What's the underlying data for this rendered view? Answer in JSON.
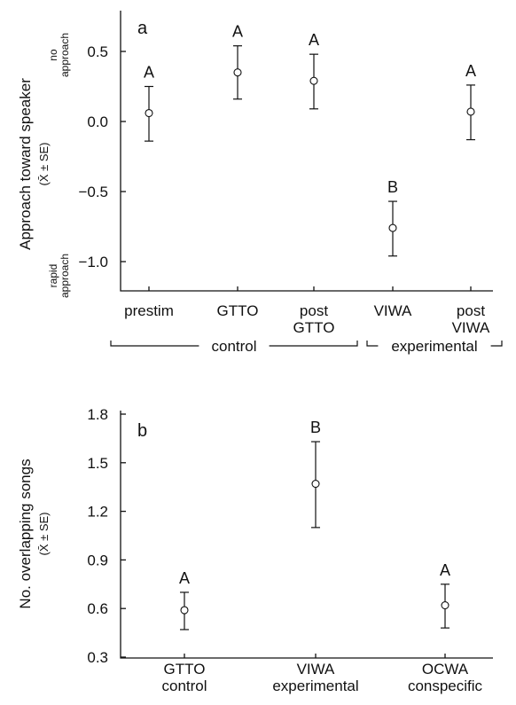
{
  "chart_data": [
    {
      "type": "scatter",
      "panel_label": "a",
      "ylabel": "Approach toward speaker",
      "ylabel_sub": "(X̄ ± SE)",
      "y_top_note": "no approach",
      "y_bottom_note": "rapid approach",
      "ylim": [
        -1.2,
        0.65
      ],
      "yticks": [
        0.5,
        0.0,
        -0.5,
        -1.0
      ],
      "ytick_labels": [
        "0.5",
        "0.0",
        "−0.5",
        "−1.0"
      ],
      "categories": [
        [
          "prestim"
        ],
        [
          "GTTO"
        ],
        [
          "post",
          "GTTO"
        ],
        [
          "VIWA"
        ],
        [
          "post",
          "VIWA"
        ]
      ],
      "means": [
        0.06,
        0.35,
        0.29,
        -0.76,
        0.07
      ],
      "se_low": [
        -0.14,
        0.16,
        0.09,
        -0.96,
        -0.13
      ],
      "se_high": [
        0.25,
        0.54,
        0.48,
        -0.57,
        0.26
      ],
      "significance": [
        "A",
        "A",
        "A",
        "B",
        "A"
      ],
      "groups": [
        {
          "label": "control",
          "from": 0,
          "to": 2
        },
        {
          "label": "experimental",
          "from": 3,
          "to": 4
        }
      ],
      "grid": false
    },
    {
      "type": "scatter",
      "panel_label": "b",
      "ylabel": "No. overlapping songs",
      "ylabel_sub": "(X̄ ± SE)",
      "ylim": [
        0.3,
        1.8
      ],
      "yticks": [
        1.8,
        1.5,
        1.2,
        0.9,
        0.6,
        0.3
      ],
      "ytick_labels": [
        "1.8",
        "1.5",
        "1.2",
        "0.9",
        "0.6",
        "0.3"
      ],
      "categories": [
        [
          "GTTO",
          "control"
        ],
        [
          "VIWA",
          "experimental"
        ],
        [
          "OCWA",
          "conspecific"
        ]
      ],
      "means": [
        0.59,
        1.37,
        0.62
      ],
      "se_low": [
        0.47,
        1.1,
        0.48
      ],
      "se_high": [
        0.7,
        1.63,
        0.75
      ],
      "significance": [
        "A",
        "B",
        "A"
      ],
      "grid": false
    }
  ]
}
